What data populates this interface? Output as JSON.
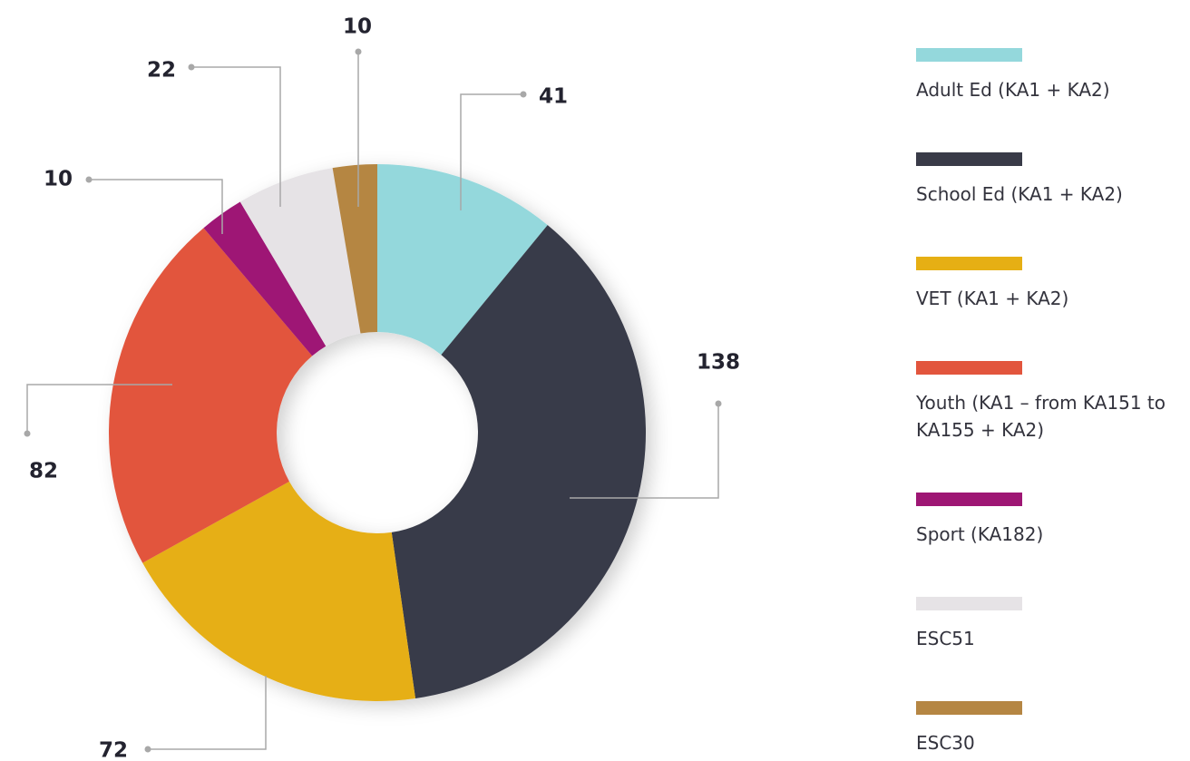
{
  "chart_data": {
    "type": "pie",
    "categories": [
      "Adult Ed (KA1 + KA2)",
      "School Ed (KA1 + KA2)",
      "VET (KA1 + KA2)",
      "Youth (KA1 – from KA151 to KA155 + KA2)",
      "Sport (KA182)",
      "ESC51",
      "ESC30"
    ],
    "values": [
      41,
      138,
      72,
      82,
      10,
      22,
      10
    ],
    "colors": [
      "#94d8dc",
      "#393b48",
      "#e6af14",
      "#e2553d",
      "#9e1674",
      "#e6e3e6",
      "#b58643"
    ]
  }
}
